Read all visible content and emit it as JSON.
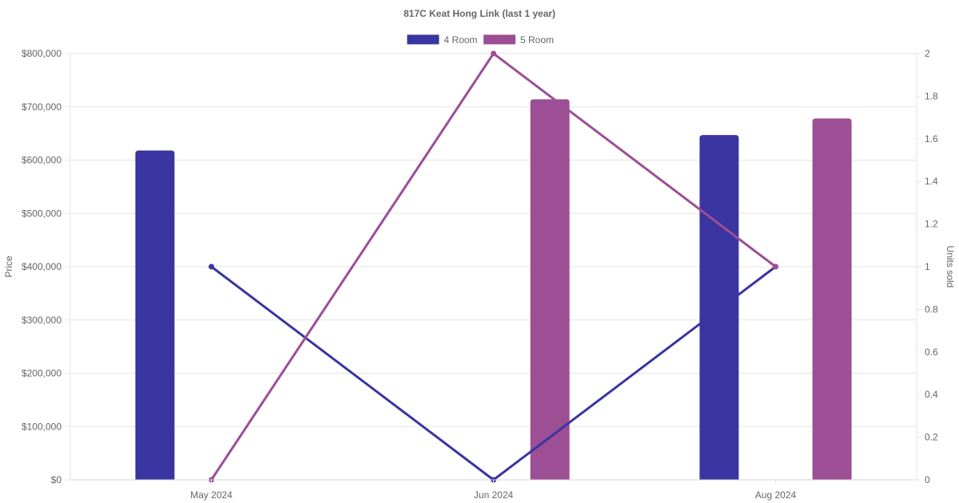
{
  "chart_data": {
    "type": "bar",
    "title": "817C Keat Hong Link (last 1 year)",
    "categories": [
      "May 2024",
      "Jun 2024",
      "Aug 2024"
    ],
    "series": [
      {
        "name": "4 Room",
        "color": "#3a35a0",
        "type": "bar",
        "axis": "left",
        "values": [
          618000,
          null,
          647000
        ]
      },
      {
        "name": "5 Room",
        "color": "#9c4f94",
        "type": "bar",
        "axis": "left",
        "values": [
          null,
          714000,
          678000
        ]
      },
      {
        "name": "4 Room",
        "color": "#3a35a0",
        "type": "line",
        "axis": "right",
        "values": [
          1,
          0,
          1
        ]
      },
      {
        "name": "5 Room",
        "color": "#9c4f94",
        "type": "line",
        "axis": "right",
        "values": [
          0,
          2,
          1
        ]
      }
    ],
    "legend": [
      {
        "name": "4 Room",
        "color": "#3a35a0"
      },
      {
        "name": "5 Room",
        "color": "#9c4f94"
      }
    ],
    "legend_position": "top",
    "ylabel": "Price",
    "y2label": "Units sold",
    "ylim": [
      0,
      800000
    ],
    "y2lim": [
      0,
      2
    ],
    "yticks": [
      "$0",
      "$100,000",
      "$200,000",
      "$300,000",
      "$400,000",
      "$500,000",
      "$600,000",
      "$700,000",
      "$800,000"
    ],
    "y2ticks": [
      "0",
      "0.2",
      "0.4",
      "0.6",
      "0.8",
      "1",
      "1.2",
      "1.4",
      "1.6",
      "1.8",
      "2"
    ],
    "grid": true
  }
}
